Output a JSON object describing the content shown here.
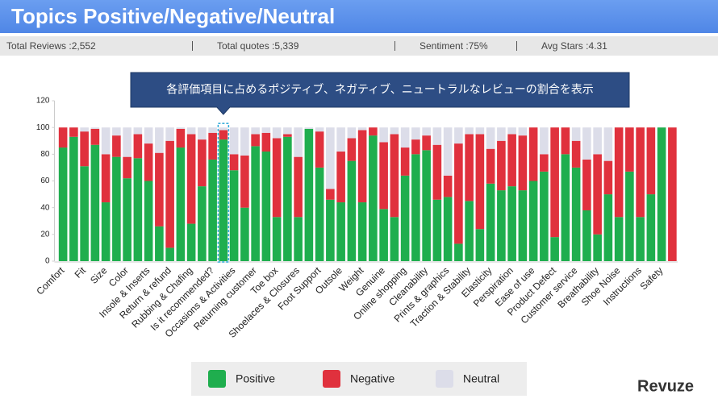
{
  "header": {
    "title": "Topics Positive/Negative/Neutral"
  },
  "stats": [
    "Total Reviews :2,552",
    "Total quotes :5,339",
    "Sentiment :75%",
    "Avg Stars :4.31"
  ],
  "tooltip": "各評価項目に占めるポジティブ、ネガティブ、ニュートラルなレビューの割合を表示",
  "logo": "Revuze",
  "chart_data": {
    "type": "stacked_bar",
    "categories": [
      "Comfort",
      null,
      "Fit",
      null,
      "Size",
      null,
      "Color",
      null,
      "Insole & Inserts",
      null,
      "Return & refund",
      null,
      "Rubbing & Chafing",
      null,
      "Is it recommended?",
      null,
      "Occasions & Activities",
      null,
      "Returning customer",
      null,
      "Toe box",
      null,
      "Shoelaces & Closures",
      null,
      "Foot Support",
      null,
      "Outsole",
      null,
      "Weight",
      null,
      "Genuine",
      null,
      "Online shopping",
      null,
      "Cleanability",
      null,
      "Prints & graphics",
      null,
      "Traction & Stability",
      null,
      "Elasticity",
      null,
      "Perspiration",
      null,
      "Ease of use",
      null,
      "Product Defect",
      null,
      "Customer service",
      null,
      "Breathability",
      null,
      "Shoe Noise",
      null,
      "Instructions",
      null,
      "Safety",
      null
    ],
    "series": [
      {
        "name": "Positive",
        "color": "#1fae4e",
        "values": [
          85,
          93,
          71,
          87,
          44,
          78,
          62,
          77,
          60,
          26,
          10,
          85,
          28,
          56,
          76,
          91,
          68,
          40,
          86,
          82,
          33,
          93,
          33,
          99,
          70,
          46,
          44,
          75,
          44,
          94,
          39,
          33,
          64,
          80,
          83,
          46,
          48,
          13,
          45,
          24,
          58,
          53,
          56,
          53,
          60,
          67,
          18,
          80,
          70,
          38,
          20,
          50,
          33,
          67,
          33,
          50,
          100,
          0
        ]
      },
      {
        "name": "Negative",
        "color": "#e0313d",
        "values": [
          15,
          7,
          26,
          12,
          36,
          16,
          16,
          18,
          28,
          55,
          80,
          14,
          67,
          35,
          20,
          7,
          12,
          39,
          9,
          14,
          59,
          2,
          45,
          0,
          27,
          8,
          38,
          17,
          54,
          6,
          50,
          62,
          21,
          11,
          11,
          41,
          16,
          75,
          50,
          71,
          26,
          37,
          39,
          41,
          40,
          13,
          82,
          20,
          20,
          38,
          60,
          25,
          67,
          33,
          67,
          50,
          0,
          100
        ]
      },
      {
        "name": "Neutral",
        "color": "#dcdde9",
        "values": [
          0,
          0,
          3,
          1,
          20,
          6,
          22,
          5,
          12,
          19,
          10,
          1,
          5,
          9,
          4,
          2,
          20,
          21,
          5,
          4,
          8,
          5,
          22,
          1,
          3,
          46,
          18,
          8,
          2,
          0,
          11,
          5,
          15,
          9,
          6,
          13,
          36,
          12,
          5,
          5,
          16,
          10,
          5,
          6,
          0,
          20,
          0,
          0,
          10,
          24,
          20,
          25,
          0,
          0,
          0,
          0,
          0,
          0
        ]
      }
    ],
    "ylim": [
      0,
      120
    ],
    "yticks": [
      0,
      20,
      40,
      60,
      80,
      100,
      120
    ],
    "highlight": 15
  }
}
